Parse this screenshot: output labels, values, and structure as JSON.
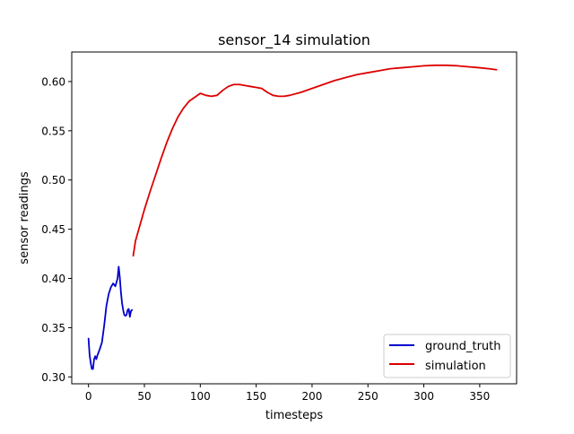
{
  "chart_data": {
    "type": "line",
    "title": "sensor_14 simulation",
    "xlabel": "timesteps",
    "ylabel": "sensor readings",
    "xlim": [
      -15,
      383
    ],
    "ylim": [
      0.293,
      0.63
    ],
    "xticks": [
      0,
      50,
      100,
      150,
      200,
      250,
      300,
      350
    ],
    "yticks": [
      0.3,
      0.35,
      0.4,
      0.45,
      0.5,
      0.55,
      0.6
    ],
    "xtick_labels": [
      "0",
      "50",
      "100",
      "150",
      "200",
      "250",
      "300",
      "350"
    ],
    "ytick_labels": [
      "0.30",
      "0.35",
      "0.40",
      "0.45",
      "0.50",
      "0.55",
      "0.60"
    ],
    "grid": false,
    "legend_position": "lower-right",
    "series": [
      {
        "name": "ground_truth",
        "color": "#0000cc",
        "x": [
          0,
          1,
          2,
          3,
          4,
          5,
          6,
          7,
          8,
          10,
          12,
          14,
          16,
          18,
          20,
          22,
          24,
          26,
          27,
          28,
          29,
          30,
          31,
          32,
          33,
          34,
          35,
          36,
          37,
          38,
          39
        ],
        "y": [
          0.339,
          0.322,
          0.314,
          0.308,
          0.308,
          0.318,
          0.321,
          0.318,
          0.322,
          0.328,
          0.335,
          0.352,
          0.372,
          0.384,
          0.391,
          0.395,
          0.392,
          0.4,
          0.412,
          0.401,
          0.386,
          0.375,
          0.368,
          0.363,
          0.362,
          0.363,
          0.368,
          0.369,
          0.361,
          0.367,
          0.368
        ]
      },
      {
        "name": "simulation",
        "color": "#dd0000",
        "x": [
          40,
          42,
          45,
          50,
          55,
          60,
          65,
          70,
          75,
          80,
          85,
          90,
          95,
          100,
          105,
          110,
          115,
          120,
          125,
          130,
          135,
          140,
          145,
          150,
          155,
          160,
          165,
          170,
          175,
          180,
          190,
          200,
          210,
          220,
          230,
          240,
          250,
          260,
          270,
          280,
          290,
          300,
          310,
          320,
          330,
          340,
          350,
          358,
          365
        ],
        "y": [
          0.423,
          0.438,
          0.45,
          0.47,
          0.488,
          0.505,
          0.522,
          0.538,
          0.552,
          0.564,
          0.573,
          0.58,
          0.584,
          0.588,
          0.586,
          0.585,
          0.586,
          0.591,
          0.595,
          0.597,
          0.597,
          0.596,
          0.595,
          0.594,
          0.593,
          0.589,
          0.586,
          0.585,
          0.585,
          0.586,
          0.589,
          0.593,
          0.597,
          0.601,
          0.604,
          0.607,
          0.609,
          0.611,
          0.613,
          0.614,
          0.615,
          0.616,
          0.6165,
          0.6165,
          0.616,
          0.615,
          0.614,
          0.613,
          0.612
        ]
      }
    ]
  }
}
